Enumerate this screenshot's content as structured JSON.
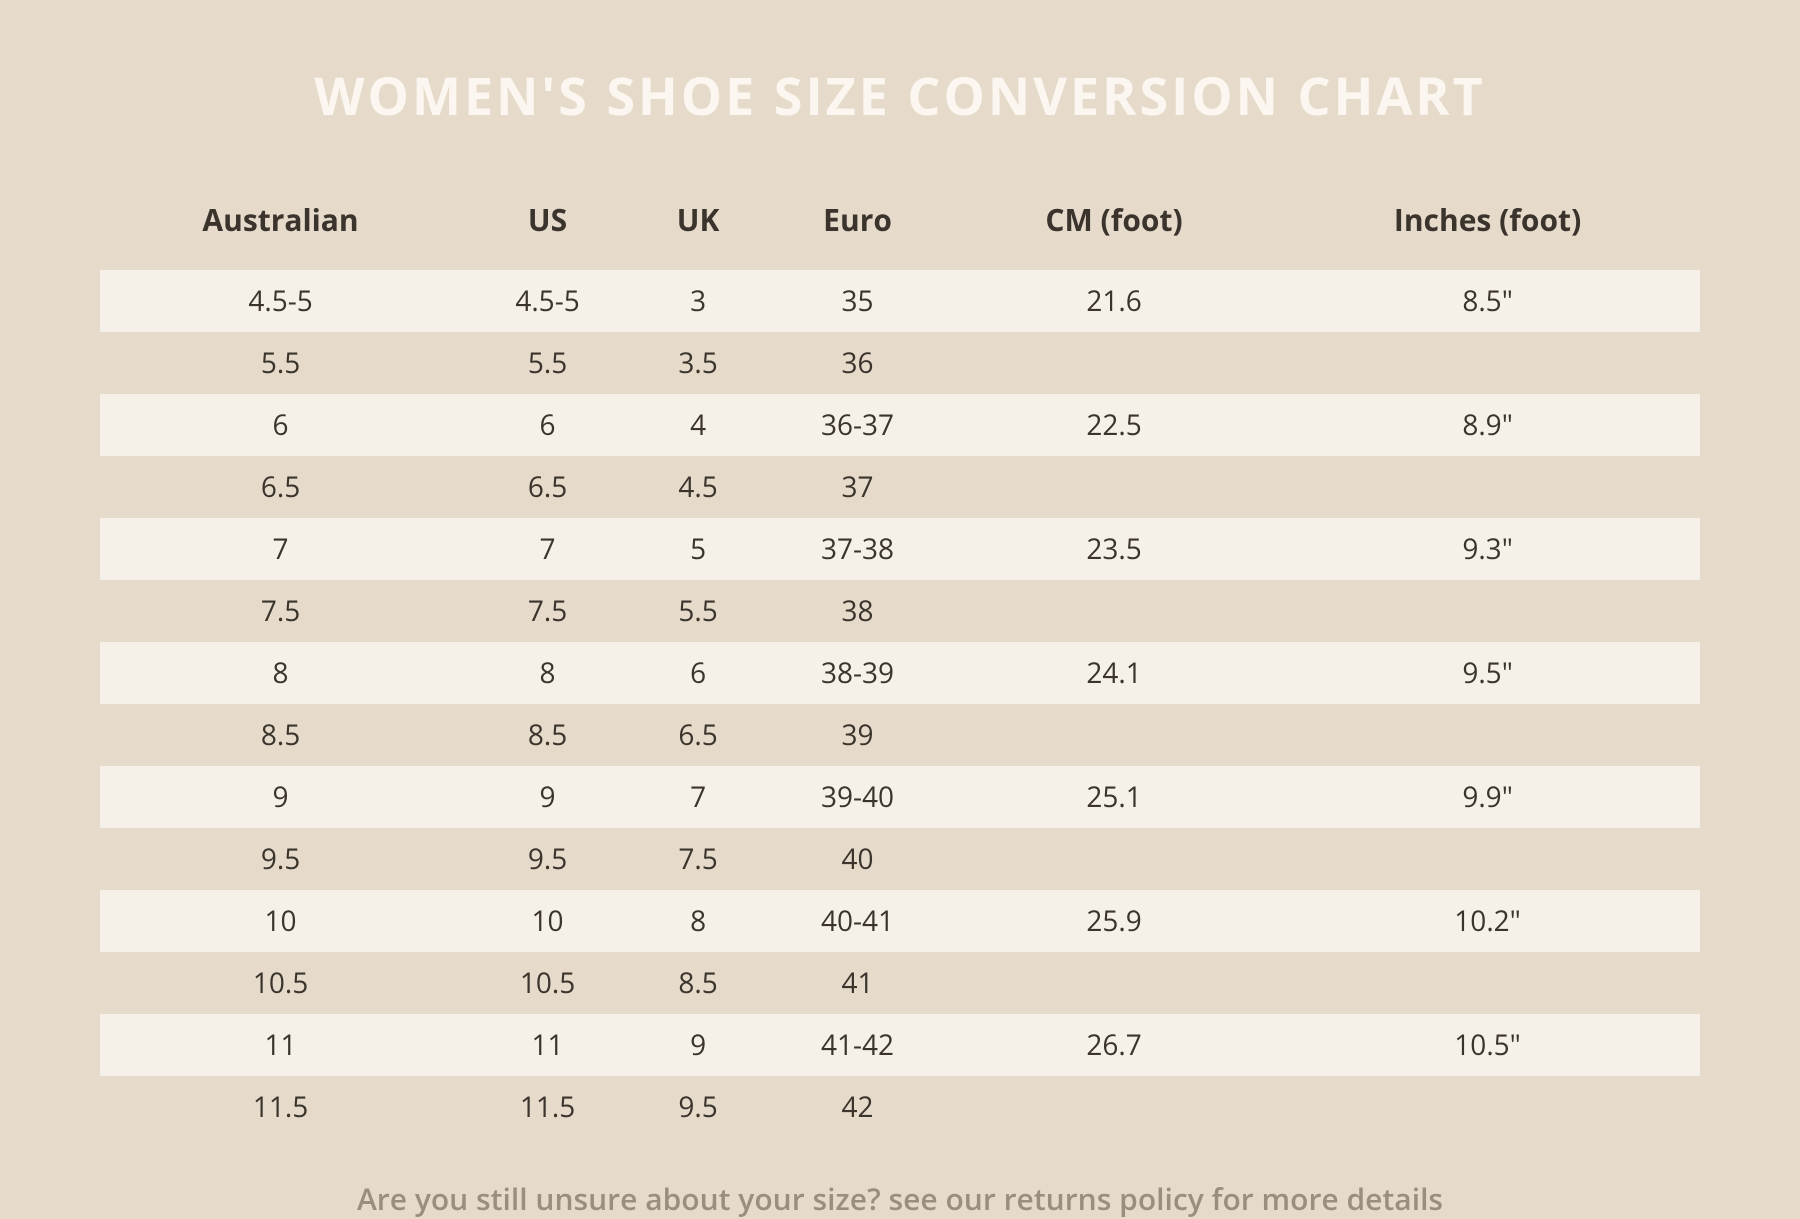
{
  "title": "WOMEN'S SHOE SIZE CONVERSION CHART",
  "title_fontsize": 52,
  "title_color": "#fbf7f0",
  "background_color": "#e6dbcb",
  "row_light_color": "#f6f1e8",
  "row_dark_color": "#e6dbcb",
  "text_color": "#3a342d",
  "footer_color": "#9a8f7f",
  "header_fontsize": 30,
  "cell_fontsize": 28,
  "footer_fontsize": 30,
  "columns": [
    "Australian",
    "US",
    "UK",
    "Euro",
    "CM (foot)",
    "Inches (foot)"
  ],
  "rows": [
    [
      "4.5-5",
      "4.5-5",
      "3",
      "35",
      "21.6",
      "8.5\""
    ],
    [
      "5.5",
      "5.5",
      "3.5",
      "36",
      "",
      ""
    ],
    [
      "6",
      "6",
      "4",
      "36-37",
      "22.5",
      "8.9\""
    ],
    [
      "6.5",
      "6.5",
      "4.5",
      "37",
      "",
      ""
    ],
    [
      "7",
      "7",
      "5",
      "37-38",
      "23.5",
      "9.3\""
    ],
    [
      "7.5",
      "7.5",
      "5.5",
      "38",
      "",
      ""
    ],
    [
      "8",
      "8",
      "6",
      "38-39",
      "24.1",
      "9.5\""
    ],
    [
      "8.5",
      "8.5",
      "6.5",
      "39",
      "",
      ""
    ],
    [
      "9",
      "9",
      "7",
      "39-40",
      "25.1",
      "9.9\""
    ],
    [
      "9.5",
      "9.5",
      "7.5",
      "40",
      "",
      ""
    ],
    [
      "10",
      "10",
      "8",
      "40-41",
      "25.9",
      "10.2\""
    ],
    [
      "10.5",
      "10.5",
      "8.5",
      "41",
      "",
      ""
    ],
    [
      "11",
      "11",
      "9",
      "41-42",
      "26.7",
      "10.5\""
    ],
    [
      "11.5",
      "11.5",
      "9.5",
      "42",
      "",
      ""
    ]
  ],
  "footer": "Are you still unsure about your size? see our returns policy for more details"
}
